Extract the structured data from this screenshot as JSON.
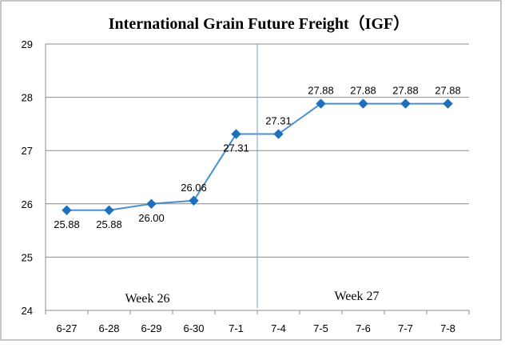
{
  "chart_data": {
    "type": "line",
    "title": "International Grain Future Freight（IGF）",
    "categories": [
      "6-27",
      "6-28",
      "6-29",
      "6-30",
      "7-1",
      "7-4",
      "7-5",
      "7-6",
      "7-7",
      "7-8"
    ],
    "series": [
      {
        "values": [
          25.88,
          25.88,
          26.0,
          26.06,
          27.31,
          27.31,
          27.88,
          27.88,
          27.88,
          27.88
        ],
        "labels": [
          "25.88",
          "25.88",
          "26.00",
          "26.06",
          "27.31",
          "27.31",
          "27.88",
          "27.88",
          "27.88",
          "27.88"
        ],
        "color": "#4a90d0"
      }
    ],
    "ylim": [
      24,
      29
    ],
    "yticks": [
      "24",
      "25",
      "26",
      "27",
      "28",
      "29"
    ],
    "grid": true,
    "xlabel": "",
    "ylabel": "",
    "annotations": [
      "Week 26",
      "Week 27"
    ],
    "week_divider_after": "7-1"
  }
}
